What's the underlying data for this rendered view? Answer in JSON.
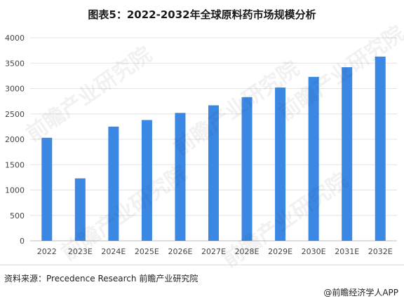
{
  "title": "图表5：2022-2032年全球原料药市场规模分析",
  "source": "资料来源：Precedence Research 前瞻产业研究院",
  "credit": "@前瞻经济学人APP",
  "watermark": "前瞻产业研究院",
  "colors": {
    "bar": "#3a87e4",
    "grid": "#e3e3e3",
    "axis": "#bfbfbf"
  },
  "chart_data": {
    "type": "bar",
    "categories": [
      "2022",
      "2023E",
      "2024E",
      "2025E",
      "2026E",
      "2027E",
      "2028E",
      "2029E",
      "2030E",
      "2031E",
      "2032E"
    ],
    "values": [
      2030,
      1230,
      2250,
      2380,
      2520,
      2670,
      2830,
      3020,
      3230,
      3420,
      3630
    ],
    "yticks": [
      0,
      500,
      1000,
      1500,
      2000,
      2500,
      3000,
      3500,
      4000
    ],
    "ylim": [
      0,
      4000
    ],
    "grid": true
  }
}
